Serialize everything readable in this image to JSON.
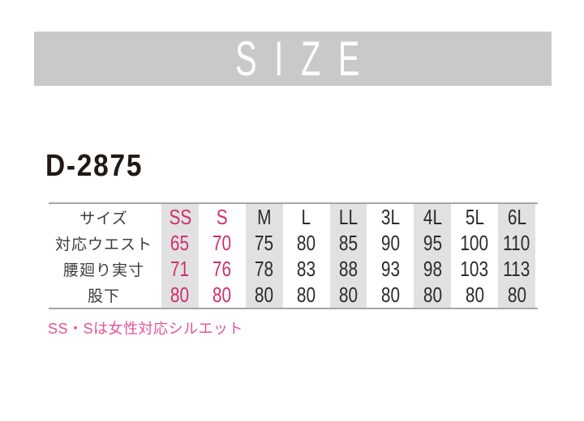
{
  "chart_data": {
    "type": "table",
    "title": "SIZE",
    "subtitle": "D-2875",
    "row_header_label": "サイズ",
    "columns": [
      "SS",
      "S",
      "M",
      "L",
      "LL",
      "3L",
      "4L",
      "5L",
      "6L"
    ],
    "rows": [
      {
        "label": "対応ウエスト",
        "values": [
          65,
          70,
          75,
          80,
          85,
          90,
          95,
          100,
          110
        ]
      },
      {
        "label": "腰廻り実寸",
        "values": [
          71,
          76,
          78,
          83,
          88,
          93,
          98,
          103,
          113
        ]
      },
      {
        "label": "股下",
        "values": [
          80,
          80,
          80,
          80,
          80,
          80,
          80,
          80,
          80
        ]
      }
    ],
    "note": "SS・Sは女性対応シルエット",
    "highlighted_columns": [
      "SS",
      "S"
    ],
    "layout": {
      "striped_columns": "SS, M, LL, 4L, 6L",
      "stripe_color": "#e1e1e1",
      "accent_color": "#cd2f70",
      "note_color": "#e3539a",
      "banner_color": "#c9c9c9",
      "rule_color": "#a6a6a6",
      "legend_position": "none",
      "grid": "horizontal rules top and bottom only"
    }
  }
}
